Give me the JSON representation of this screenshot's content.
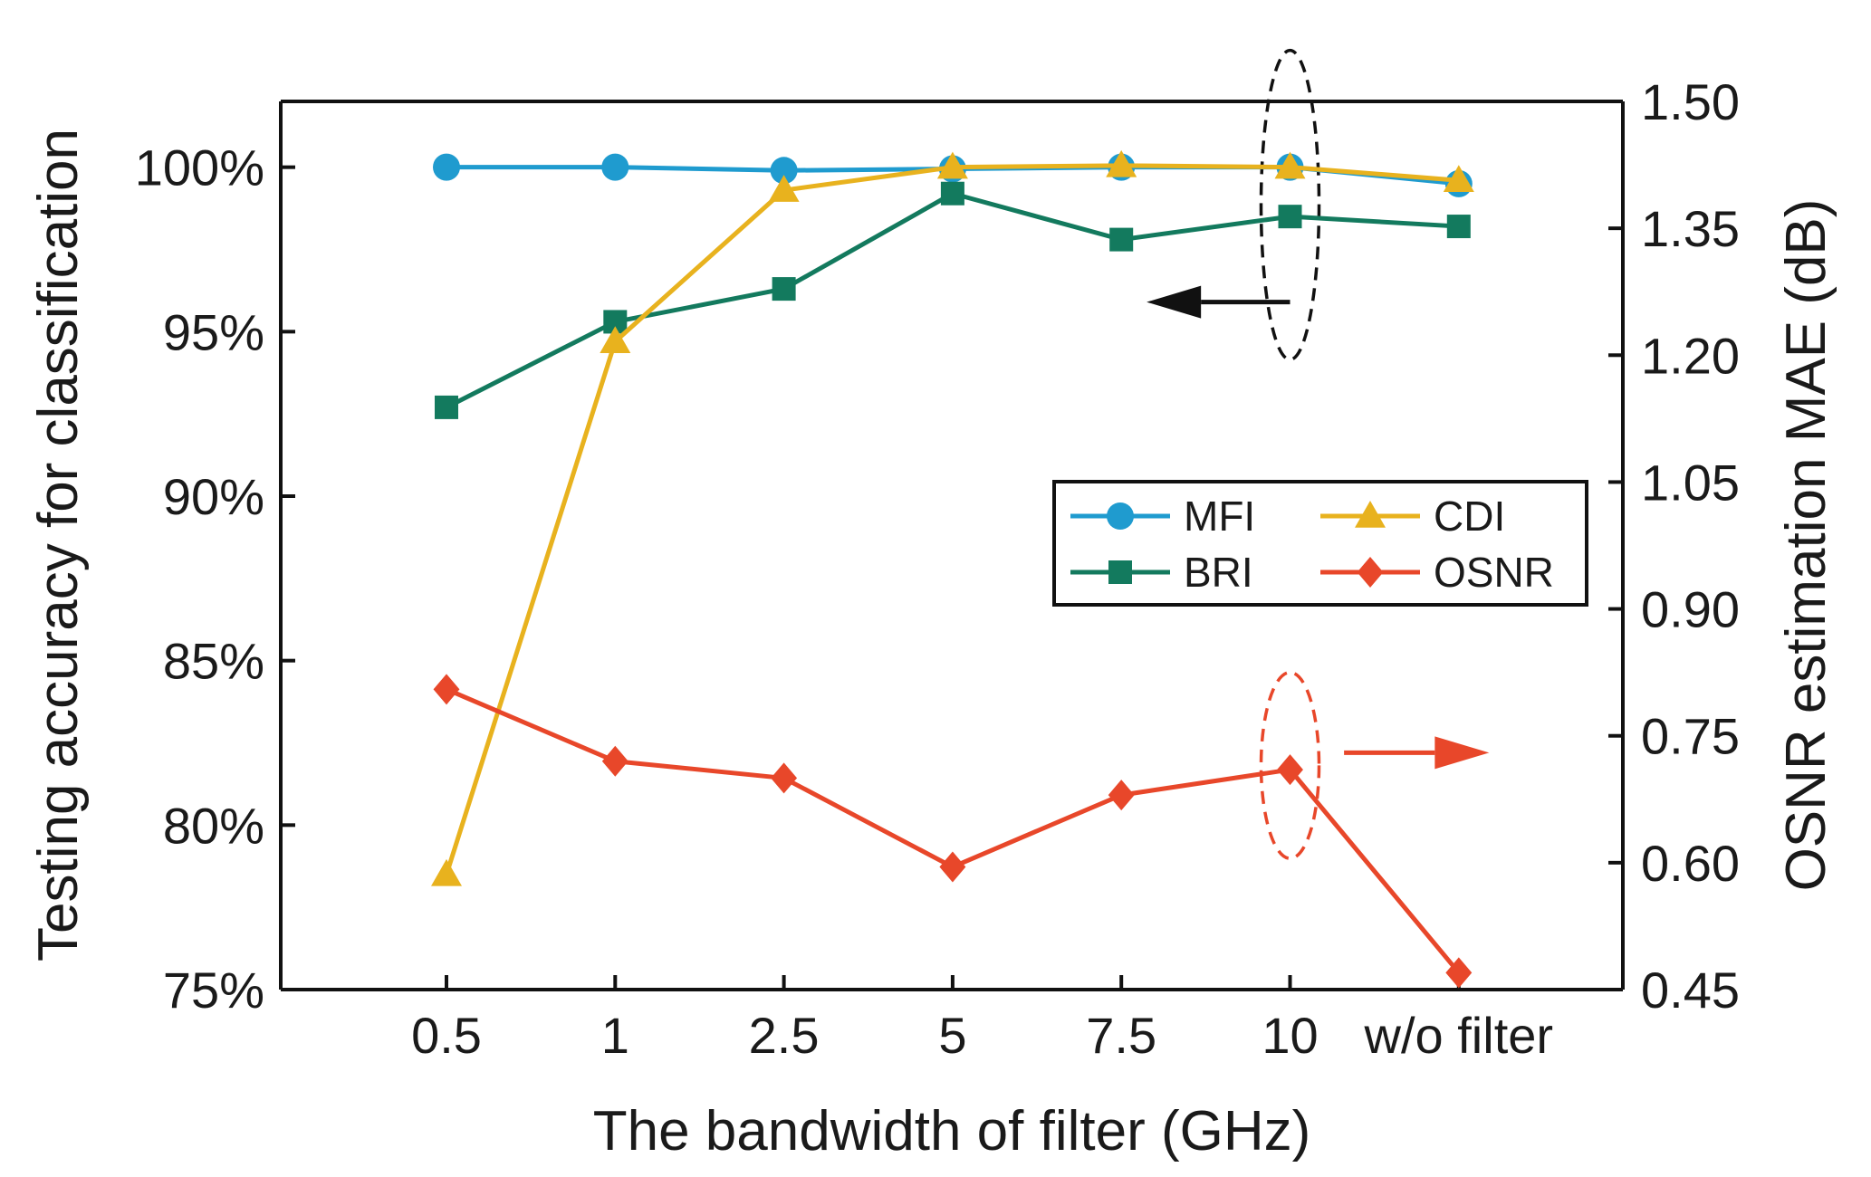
{
  "chart_data": {
    "type": "line",
    "title": "",
    "xlabel": "The bandwidth of filter (GHz)",
    "ylabel_left": "Testing accuracy for classification",
    "ylabel_right": "OSNR estimation MAE (dB)",
    "categories": [
      "0.5",
      "1",
      "2.5",
      "5",
      "7.5",
      "10",
      "w/o filter"
    ],
    "ylim_left": [
      75,
      102
    ],
    "ylim_right": [
      0.45,
      1.5
    ],
    "yticks_left": [
      "75%",
      "80%",
      "85%",
      "90%",
      "95%",
      "100%"
    ],
    "yticks_left_values": [
      75,
      80,
      85,
      90,
      95,
      100
    ],
    "yticks_right": [
      "0.45",
      "0.60",
      "0.75",
      "0.90",
      "1.05",
      "1.20",
      "1.35",
      "1.50"
    ],
    "yticks_right_values": [
      0.45,
      0.6,
      0.75,
      0.9,
      1.05,
      1.2,
      1.35,
      1.5
    ],
    "grid": false,
    "legend_position": "center-right",
    "series": [
      {
        "name": "MFI",
        "axis": "left",
        "marker": "circle",
        "color": "#1F9BCF",
        "values": [
          100.0,
          100.0,
          99.9,
          99.95,
          100.0,
          100.0,
          99.5
        ]
      },
      {
        "name": "CDI",
        "axis": "left",
        "marker": "triangle",
        "color": "#E8B21E",
        "values": [
          78.5,
          94.7,
          99.3,
          100.0,
          100.05,
          100.0,
          99.6
        ]
      },
      {
        "name": "BRI",
        "axis": "left",
        "marker": "square",
        "color": "#137A5E",
        "values": [
          92.7,
          95.3,
          96.3,
          99.2,
          97.8,
          98.5,
          98.2
        ]
      },
      {
        "name": "OSNR",
        "axis": "right",
        "marker": "diamond",
        "color": "#E8472A",
        "values": [
          0.805,
          0.72,
          0.7,
          0.595,
          0.68,
          0.71,
          0.47
        ]
      }
    ],
    "annotations": [
      {
        "type": "ellipse",
        "category": "10",
        "axis": "left",
        "center": 98.85,
        "half_height": 4.7,
        "color": "#111111"
      },
      {
        "type": "arrow",
        "direction": "left",
        "axis": "left",
        "from_category": "10",
        "to_category": "7.5",
        "from_offset": 0.0,
        "to_offset": 0.15,
        "value": 95.9,
        "color": "#111111"
      },
      {
        "type": "ellipse",
        "category": "10",
        "axis": "right",
        "center": 0.715,
        "half_height": 0.11,
        "color": "#E8472A"
      },
      {
        "type": "arrow",
        "direction": "right",
        "axis": "right",
        "from_category": "10",
        "to_category": "w/o filter",
        "from_offset": 0.32,
        "to_offset": 0.18,
        "value": 0.73,
        "color": "#E8472A"
      }
    ]
  }
}
